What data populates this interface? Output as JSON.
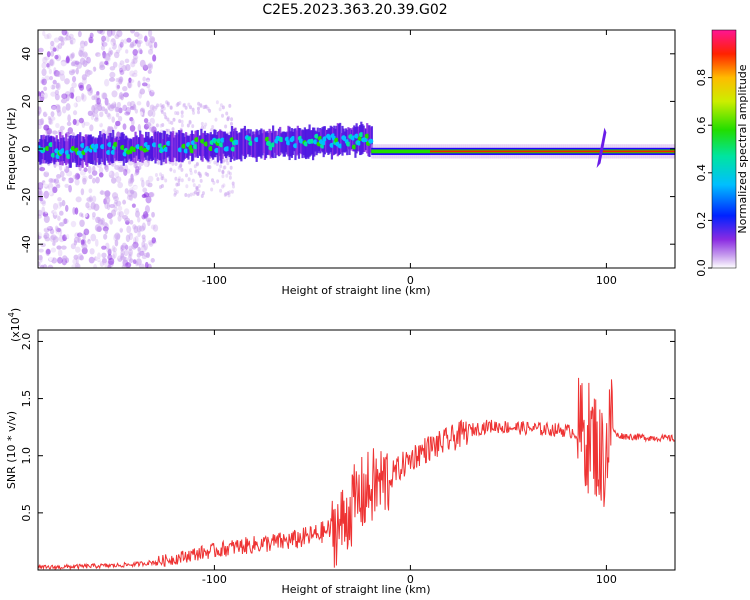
{
  "title": "C2E5.2023.363.20.39.G02",
  "colors": {
    "signal_line": "#ee3333",
    "frame": "#000000"
  },
  "chart_data": [
    {
      "type": "heatmap",
      "xlabel": "Height of straight line (km)",
      "ylabel": "Frequency (Hz)",
      "xlim": [
        -190,
        135
      ],
      "ylim": [
        -50,
        50
      ],
      "xticks": [
        -100,
        0,
        100
      ],
      "yticks": [
        -40,
        -20,
        0,
        20,
        40
      ],
      "colorbar": {
        "label": "Normalized spectral amplitude",
        "range": [
          0,
          1
        ],
        "ticks": [
          0.0,
          0.2,
          0.4,
          0.6,
          0.8
        ],
        "colormap": "rainbow"
      },
      "features": [
        {
          "region": "x < -130 km",
          "description": "scattered low-amplitude noise across all frequencies"
        },
        {
          "region": "-130 to -20 km",
          "description": "broad band near 0 Hz, frequency rising slightly from about -2 to +5 Hz"
        },
        {
          "region": "-20 to 135 km",
          "description": "narrow high-amplitude tone near -1 Hz"
        }
      ]
    },
    {
      "type": "line",
      "xlabel": "Height of straight line (km)",
      "ylabel": "SNR (10 * v/v)",
      "y_multiplier": "(x10",
      "y_multiplier_exp": "4",
      "y_multiplier_close": ")",
      "xlim": [
        -190,
        135
      ],
      "ylim": [
        0,
        2.1
      ],
      "xticks": [
        -100,
        0,
        100
      ],
      "yticks": [
        0.5,
        1.0,
        1.5,
        2.0
      ],
      "series": [
        {
          "x": [
            -190,
            -170,
            -150,
            -140,
            -130,
            -120,
            -110,
            -100,
            -90,
            -80,
            -70,
            -60,
            -50,
            -45,
            -40,
            -35,
            -30,
            -25,
            -20,
            -15,
            -10,
            -5,
            0,
            5,
            10,
            15,
            20,
            25,
            30,
            40,
            50,
            60,
            70,
            80,
            85,
            90,
            92,
            95,
            97,
            100,
            102,
            105,
            110,
            120,
            135
          ],
          "y": [
            0.02,
            0.03,
            0.04,
            0.05,
            0.07,
            0.1,
            0.14,
            0.17,
            0.2,
            0.22,
            0.24,
            0.26,
            0.3,
            0.33,
            0.36,
            0.4,
            0.55,
            0.65,
            0.72,
            0.76,
            0.82,
            0.9,
            0.97,
            1.03,
            1.07,
            1.1,
            1.14,
            1.18,
            1.22,
            1.26,
            1.25,
            1.24,
            1.23,
            1.22,
            1.2,
            1.18,
            1.15,
            1.1,
            0.95,
            1.05,
            1.3,
            1.18,
            1.17,
            1.16,
            1.15
          ]
        }
      ]
    }
  ]
}
